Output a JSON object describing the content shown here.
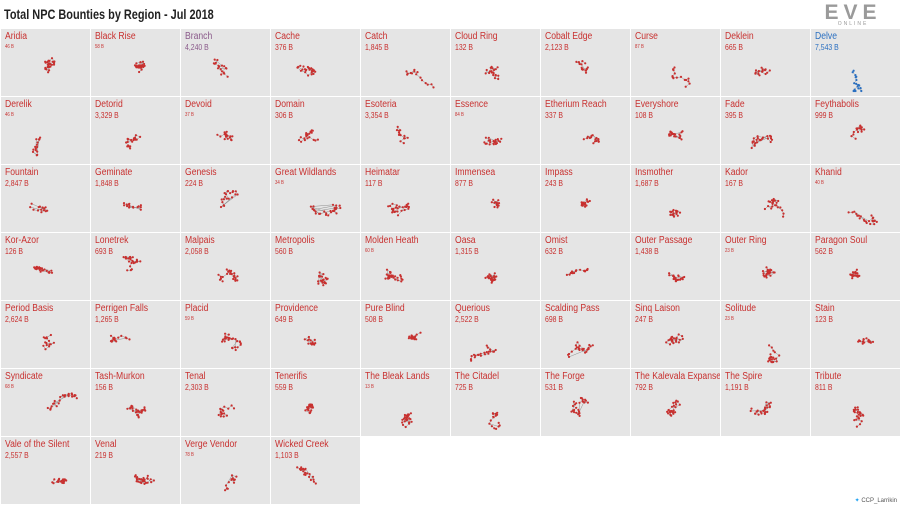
{
  "header": {
    "title": "Total NPC Bounties by Region - Jul 2018",
    "logo": "EVE",
    "logo_sub": "ONLINE"
  },
  "footer": {
    "credit": "CCP_Larrikin",
    "icon": "twitter-bird-icon"
  },
  "colors": {
    "default": "#c8302f",
    "highlight": "#2a6fc0",
    "muted": "#8a5a8a",
    "tile_bg": "#e5e5e5"
  },
  "chart_data": {
    "type": "table",
    "title": "Total NPC Bounties by Region - Jul 2018",
    "unit": "B",
    "highlight": "Delve",
    "regions": [
      {
        "name": "Aridia",
        "value": "46 B"
      },
      {
        "name": "Black Rise",
        "value": "58 B"
      },
      {
        "name": "Branch",
        "value": "4,240 B"
      },
      {
        "name": "Cache",
        "value": "376 B"
      },
      {
        "name": "Catch",
        "value": "1,845 B"
      },
      {
        "name": "Cloud Ring",
        "value": "132 B"
      },
      {
        "name": "Cobalt Edge",
        "value": "2,123 B"
      },
      {
        "name": "Curse",
        "value": "87 B"
      },
      {
        "name": "Deklein",
        "value": "665 B"
      },
      {
        "name": "Delve",
        "value": "7,543 B"
      },
      {
        "name": "Derelik",
        "value": "46 B"
      },
      {
        "name": "Detorid",
        "value": "3,329 B"
      },
      {
        "name": "Devoid",
        "value": "37 B"
      },
      {
        "name": "Domain",
        "value": "306 B"
      },
      {
        "name": "Esoteria",
        "value": "3,354 B"
      },
      {
        "name": "Essence",
        "value": "84 B"
      },
      {
        "name": "Etherium Reach",
        "value": "337 B"
      },
      {
        "name": "Everyshore",
        "value": "108 B"
      },
      {
        "name": "Fade",
        "value": "395 B"
      },
      {
        "name": "Feythabolis",
        "value": "999 B"
      },
      {
        "name": "Fountain",
        "value": "2,847 B"
      },
      {
        "name": "Geminate",
        "value": "1,848 B"
      },
      {
        "name": "Genesis",
        "value": "224 B"
      },
      {
        "name": "Great Wildlands",
        "value": "34 B"
      },
      {
        "name": "Heimatar",
        "value": "117 B"
      },
      {
        "name": "Immensea",
        "value": "877 B"
      },
      {
        "name": "Impass",
        "value": "243 B"
      },
      {
        "name": "Insmother",
        "value": "1,687 B"
      },
      {
        "name": "Kador",
        "value": "167 B"
      },
      {
        "name": "Khanid",
        "value": "40 B"
      },
      {
        "name": "Kor-Azor",
        "value": "126 B"
      },
      {
        "name": "Lonetrek",
        "value": "693 B"
      },
      {
        "name": "Malpais",
        "value": "2,058 B"
      },
      {
        "name": "Metropolis",
        "value": "560 B"
      },
      {
        "name": "Molden Heath",
        "value": "60 B"
      },
      {
        "name": "Oasa",
        "value": "1,315 B"
      },
      {
        "name": "Omist",
        "value": "632 B"
      },
      {
        "name": "Outer Passage",
        "value": "1,438 B"
      },
      {
        "name": "Outer Ring",
        "value": "23 B"
      },
      {
        "name": "Paragon Soul",
        "value": "562 B"
      },
      {
        "name": "Period Basis",
        "value": "2,624 B"
      },
      {
        "name": "Perrigen Falls",
        "value": "1,265 B"
      },
      {
        "name": "Placid",
        "value": "59 B"
      },
      {
        "name": "Providence",
        "value": "649 B"
      },
      {
        "name": "Pure Blind",
        "value": "508 B"
      },
      {
        "name": "Querious",
        "value": "2,522 B"
      },
      {
        "name": "Scalding Pass",
        "value": "698 B"
      },
      {
        "name": "Sinq Laison",
        "value": "247 B"
      },
      {
        "name": "Solitude",
        "value": "23 B"
      },
      {
        "name": "Stain",
        "value": "123 B"
      },
      {
        "name": "Syndicate",
        "value": "68 B"
      },
      {
        "name": "Tash-Murkon",
        "value": "156 B"
      },
      {
        "name": "Tenal",
        "value": "2,303 B"
      },
      {
        "name": "Tenerifis",
        "value": "559 B"
      },
      {
        "name": "The Bleak Lands",
        "value": "13 B"
      },
      {
        "name": "The Citadel",
        "value": "725 B"
      },
      {
        "name": "The Forge",
        "value": "531 B"
      },
      {
        "name": "The Kalevala Expanse",
        "value": "792 B"
      },
      {
        "name": "The Spire",
        "value": "1,191 B"
      },
      {
        "name": "Tribute",
        "value": "811 B"
      },
      {
        "name": "Vale of the Silent",
        "value": "2,557 B"
      },
      {
        "name": "Venal",
        "value": "219 B"
      },
      {
        "name": "Verge Vendor",
        "value": "78 B"
      },
      {
        "name": "Wicked Creek",
        "value": "1,103 B"
      }
    ]
  }
}
